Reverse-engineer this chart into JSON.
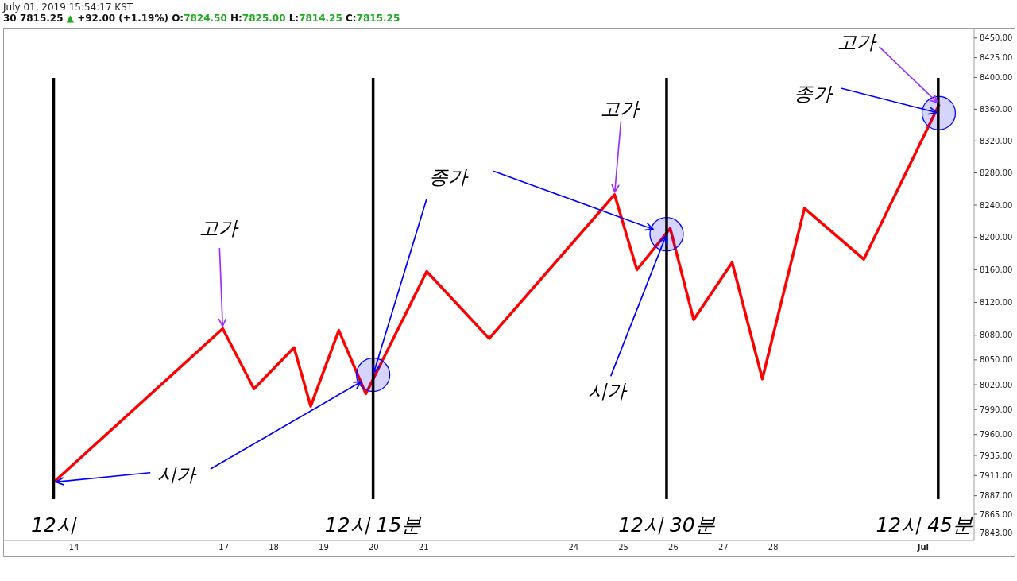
{
  "chart_data": {
    "type": "line",
    "title": "30 7815.25 ▲ +92.00 (+1.19%) O:7824.50 H:7825.00 L:7814.25 C:7815.25",
    "x": [
      "2019-06-13T14:15",
      "2019-06-16T23:30",
      "2019-06-17T14:30",
      "2019-06-18T09:45",
      "2019-06-18T17:45",
      "2019-06-19T07:15",
      "2019-06-19T20:15",
      "2019-06-21T01:30",
      "2019-06-22T07:30",
      "2019-06-24T19:45",
      "2019-06-25T06:30",
      "2019-06-25T22:30",
      "2019-06-26T09:45",
      "2019-06-27T04:15",
      "2019-06-27T18:45",
      "2019-06-28T15:00",
      "2019-06-29T19:30",
      "2019-07-01T07:45"
    ],
    "series": [
      {
        "type": "line",
        "color": "#ff0000",
        "values": [
          7903,
          8088,
          8015,
          8065,
          7994,
          8086,
          8009,
          8158,
          8076,
          8253,
          8160,
          8211,
          8099,
          8169,
          8027,
          8236,
          8173,
          8366
        ]
      },
      {
        "type": "scatter",
        "color": "#0000ff",
        "marker": "circle",
        "x": [
          "2019-06-19T23:45",
          "2019-06-25T20:45",
          "2019-07-01T07:30"
        ],
        "values": [
          8032,
          8204,
          8355
        ]
      }
    ],
    "xlim": [
      "2019-06-12T14:00",
      "2019-07-02T00:30"
    ],
    "xticks": [
      {
        "value": "2019-06-14",
        "label": "14"
      },
      {
        "value": "2019-06-17",
        "label": "17"
      },
      {
        "value": "2019-06-18",
        "label": "18"
      },
      {
        "value": "2019-06-19",
        "label": "19"
      },
      {
        "value": "2019-06-20",
        "label": "20"
      },
      {
        "value": "2019-06-21",
        "label": "21"
      },
      {
        "value": "2019-06-24",
        "label": "24"
      },
      {
        "value": "2019-06-25",
        "label": "25"
      },
      {
        "value": "2019-06-26",
        "label": "26"
      },
      {
        "value": "2019-06-27",
        "label": "27"
      },
      {
        "value": "2019-06-28",
        "label": "28"
      },
      {
        "value": "2019-07-01",
        "label": "Jul"
      }
    ],
    "ylim": [
      7834,
      8463
    ],
    "yticks": [
      {
        "value": 7843,
        "label": "7843.00"
      },
      {
        "value": 7865,
        "label": "7865.00"
      },
      {
        "value": 7887,
        "label": "7887.00"
      },
      {
        "value": 7911,
        "label": "7911.00"
      },
      {
        "value": 7935,
        "label": "7935.00"
      },
      {
        "value": 7960,
        "label": "7960.00"
      },
      {
        "value": 7990,
        "label": "7990.00"
      },
      {
        "value": 8020,
        "label": "8020.00"
      },
      {
        "value": 8050,
        "label": "8050.00"
      },
      {
        "value": 8080,
        "label": "8080.00"
      },
      {
        "value": 8120,
        "label": "8120.00"
      },
      {
        "value": 8160,
        "label": "8160.00"
      },
      {
        "value": 8200,
        "label": "8200.00"
      },
      {
        "value": 8240,
        "label": "8240.00"
      },
      {
        "value": 8280,
        "label": "8280.00"
      },
      {
        "value": 8320,
        "label": "8320.00"
      },
      {
        "value": 8360,
        "label": "8360.00"
      },
      {
        "value": 8400,
        "label": "8400.00"
      },
      {
        "value": 8425,
        "label": "8425.00"
      },
      {
        "value": 8450,
        "label": "8450.00"
      }
    ],
    "log": true,
    "line_style": "solid",
    "ref_lines": [
      {
        "axis": "x",
        "value": "2019-06-13T14:15",
        "label": "12시",
        "color": "#000000"
      },
      {
        "axis": "x",
        "value": "2019-06-19T23:45",
        "label": "12시 15분",
        "color": "#000000"
      },
      {
        "axis": "x",
        "value": "2019-06-25T20:45",
        "label": "12시 30분",
        "color": "#000000"
      },
      {
        "axis": "x",
        "value": "2019-07-01T07:15",
        "label": "12시 45분",
        "color": "#000000"
      }
    ],
    "annotations": [
      "July 01, 2019 15:54:17 KST",
      {
        "text": "고가",
        "x": "2019-06-16T23:30",
        "y": 8088
      },
      {
        "text": "시가",
        "x": "2019-06-13T14:15",
        "y": 7903
      },
      {
        "text": "종가",
        "x": "2019-06-19T23:45",
        "y": 8032
      },
      {
        "text": "고가",
        "x": "2019-06-24T19:45",
        "y": 8253
      },
      {
        "text": "시가",
        "x": "2019-06-25T20:45",
        "y": 8204
      },
      {
        "text": "고가",
        "x": "2019-07-01T07:45",
        "y": 8366
      },
      {
        "text": "종가",
        "x": "2019-07-01T07:30",
        "y": 8355
      }
    ]
  }
}
